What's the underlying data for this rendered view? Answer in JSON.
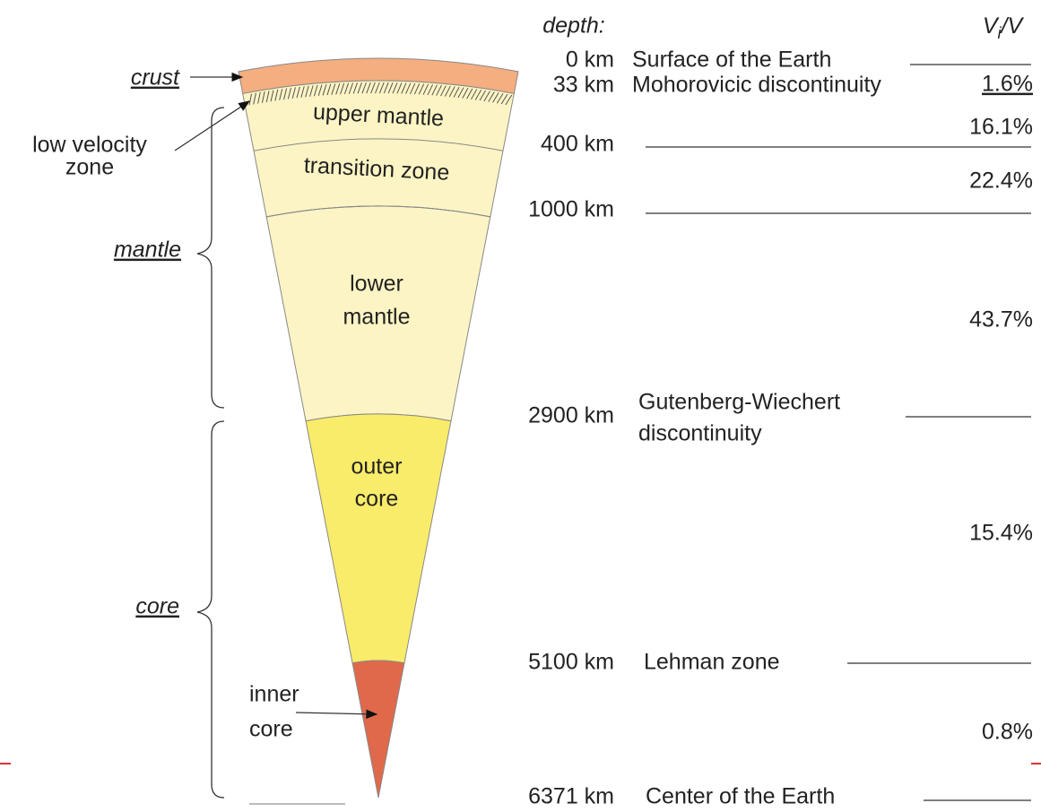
{
  "header": {
    "depth_label": "depth:",
    "ratio_label": {
      "main": "V",
      "sub": "i",
      "tail": "/V"
    }
  },
  "left_labels": {
    "crust": "crust",
    "low_velocity_zone": [
      "low velocity",
      "zone"
    ],
    "mantle": "mantle",
    "core": "core",
    "inner_core": [
      "inner",
      "core"
    ]
  },
  "layers": {
    "upper_mantle": "upper mantle",
    "transition_zone": "transition zone",
    "lower_mantle": [
      "lower",
      "mantle"
    ],
    "outer_core": [
      "outer",
      "core"
    ]
  },
  "depths": [
    {
      "depth": "0 km",
      "name": "Surface of the Earth"
    },
    {
      "depth": "33 km",
      "name": "Mohorovicic discontinuity"
    },
    {
      "depth": "400 km"
    },
    {
      "depth": "1000 km"
    },
    {
      "depth": "2900 km",
      "name": [
        "Gutenberg-Wiechert",
        "discontinuity"
      ]
    },
    {
      "depth": "5100 km",
      "name": "Lehman zone"
    },
    {
      "depth": "6371 km",
      "name": "Center of the Earth"
    }
  ],
  "fractions": [
    "1.6%",
    "16.1%",
    "22.4%",
    "43.7%",
    "15.4%",
    "0.8%"
  ]
}
